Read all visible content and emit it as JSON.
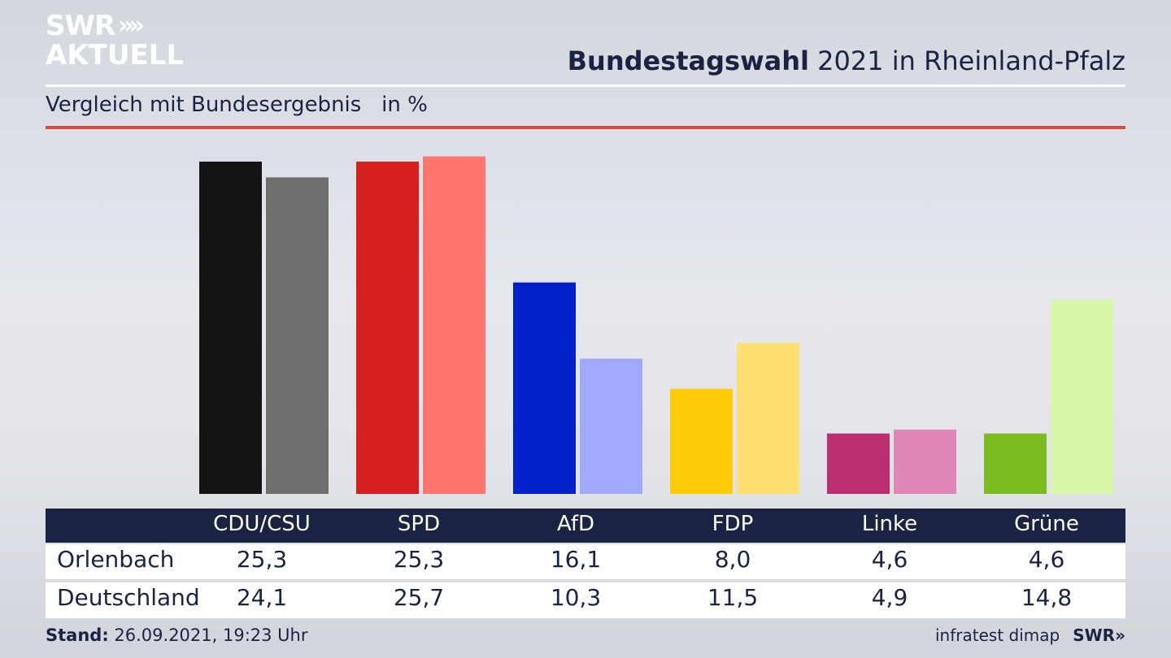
{
  "brand": {
    "logo_line1": "SWR",
    "logo_line2": "AKTUELL",
    "logo_chevrons": "»"
  },
  "header": {
    "title_bold": "Bundestagswahl",
    "title_rest": " 2021 in Rheinland-Pfalz",
    "subtitle": "Vergleich mit Bundesergebnis   in %"
  },
  "colors": {
    "accent_red": "#d84a3c",
    "navy": "#1b2342"
  },
  "chart_data": {
    "type": "bar",
    "categories": [
      "CDU/CSU",
      "SPD",
      "AfD",
      "FDP",
      "Linke",
      "Grüne"
    ],
    "series": [
      {
        "name": "Orlenbach",
        "values": [
          25.3,
          25.3,
          16.1,
          8.0,
          4.6,
          4.6
        ],
        "colors": [
          "#141414",
          "#d61f1f",
          "#0021c7",
          "#fecb0a",
          "#bd2e71",
          "#7bbd20"
        ]
      },
      {
        "name": "Deutschland",
        "values": [
          24.1,
          25.7,
          10.3,
          11.5,
          4.9,
          14.8
        ],
        "colors": [
          "#6f6e6c",
          "#ff7670",
          "#9faaff",
          "#fde06f",
          "#df88b8",
          "#d6f7aa"
        ]
      }
    ],
    "ylim": [
      0,
      26.1
    ],
    "grid": false
  },
  "table": {
    "headers": [
      "CDU/CSU",
      "SPD",
      "AfD",
      "FDP",
      "Linke",
      "Grüne"
    ],
    "rows": [
      {
        "label": "Orlenbach",
        "values": [
          "25,3",
          "25,3",
          "16,1",
          "8,0",
          "4,6",
          "4,6"
        ]
      },
      {
        "label": "Deutschland",
        "values": [
          "24,1",
          "25,7",
          "10,3",
          "11,5",
          "4,9",
          "14,8"
        ]
      }
    ]
  },
  "footer": {
    "stand_label": "Stand:",
    "stand_value": " 26.09.2021, 19:23 Uhr",
    "source": "infratest dimap",
    "swr": "SWR»"
  }
}
